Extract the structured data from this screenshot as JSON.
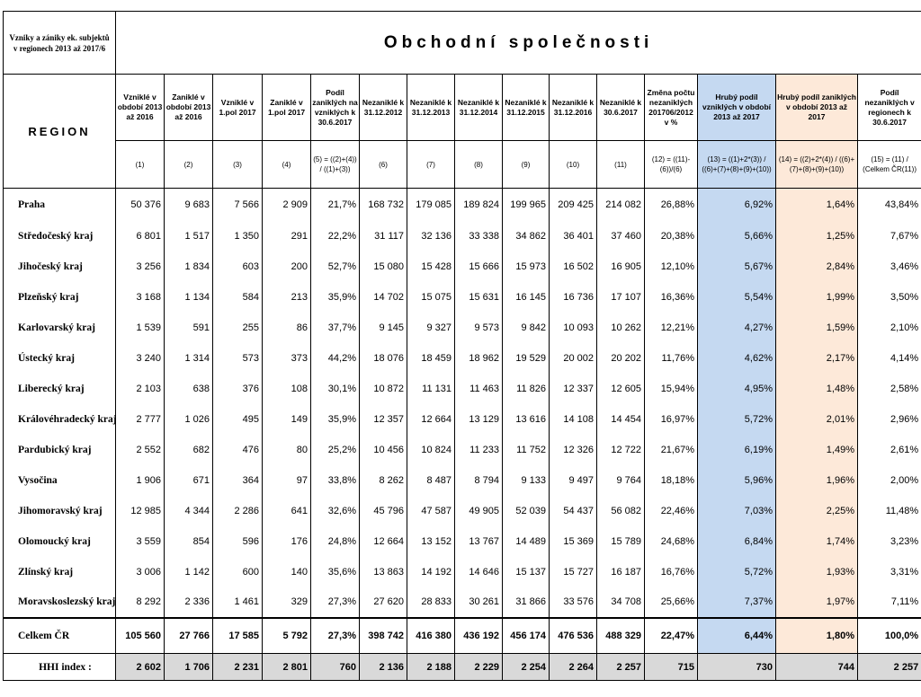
{
  "corner_label": "Vzniky a zániky ek. subjektů v regionech 2013 až 2017/6",
  "title": "Obchodní společnosti",
  "region_header": "REGION",
  "columns": [
    {
      "label": "Vzniklé v období 2013 až 2016",
      "formula": "(1)"
    },
    {
      "label": "Zaniklé v období 2013 až 2016",
      "formula": "(2)"
    },
    {
      "label": "Vzniklé v 1.pol 2017",
      "formula": "(3)"
    },
    {
      "label": "Zaniklé v 1.pol 2017",
      "formula": "(4)"
    },
    {
      "label": "Podíl zaniklých na vzniklých k 30.6.2017",
      "formula": "(5) = ((2)+(4)) / ((1)+(3))"
    },
    {
      "label": "Nezaniklé k 31.12.2012",
      "formula": "(6)"
    },
    {
      "label": "Nezaniklé k 31.12.2013",
      "formula": "(7)"
    },
    {
      "label": "Nezaniklé k 31.12.2014",
      "formula": "(8)"
    },
    {
      "label": "Nezaniklé k 31.12.2015",
      "formula": "(9)"
    },
    {
      "label": "Nezaniklé k 31.12.2016",
      "formula": "(10)"
    },
    {
      "label": "Nezaniklé k 30.6.2017",
      "formula": "(11)"
    },
    {
      "label": "Změna počtu nezaniklých 201706/2012 v %",
      "formula": "(12) = ((11)-(6))/(6)"
    },
    {
      "label": "Hrubý podíl vzniklých v období 2013 až 2017",
      "formula": "(13) = ((1)+2*(3)) / ((6)+(7)+(8)+(9)+(10))"
    },
    {
      "label": "Hrubý podíl zaniklých v období 2013 až 2017",
      "formula": "(14) = ((2)+2*(4)) / ((6)+(7)+(8)+(9)+(10))"
    },
    {
      "label": "Podíl nezaniklých v regionech k 30.6.2017",
      "formula": "(15) = (11) / (Celkem ČR(11))"
    }
  ],
  "rows": [
    {
      "name": "Praha",
      "values": [
        "50 376",
        "9 683",
        "7 566",
        "2 909",
        "21,7%",
        "168 732",
        "179 085",
        "189 824",
        "199 965",
        "209 425",
        "214 082",
        "26,88%",
        "6,92%",
        "1,64%",
        "43,84%"
      ]
    },
    {
      "name": "Středočeský kraj",
      "values": [
        "6 801",
        "1 517",
        "1 350",
        "291",
        "22,2%",
        "31 117",
        "32 136",
        "33 338",
        "34 862",
        "36 401",
        "37 460",
        "20,38%",
        "5,66%",
        "1,25%",
        "7,67%"
      ]
    },
    {
      "name": "Jihočeský kraj",
      "values": [
        "3 256",
        "1 834",
        "603",
        "200",
        "52,7%",
        "15 080",
        "15 428",
        "15 666",
        "15 973",
        "16 502",
        "16 905",
        "12,10%",
        "5,67%",
        "2,84%",
        "3,46%"
      ]
    },
    {
      "name": "Plzeňský kraj",
      "values": [
        "3 168",
        "1 134",
        "584",
        "213",
        "35,9%",
        "14 702",
        "15 075",
        "15 631",
        "16 145",
        "16 736",
        "17 107",
        "16,36%",
        "5,54%",
        "1,99%",
        "3,50%"
      ]
    },
    {
      "name": "Karlovarský kraj",
      "values": [
        "1 539",
        "591",
        "255",
        "86",
        "37,7%",
        "9 145",
        "9 327",
        "9 573",
        "9 842",
        "10 093",
        "10 262",
        "12,21%",
        "4,27%",
        "1,59%",
        "2,10%"
      ]
    },
    {
      "name": "Ústecký kraj",
      "values": [
        "3 240",
        "1 314",
        "573",
        "373",
        "44,2%",
        "18 076",
        "18 459",
        "18 962",
        "19 529",
        "20 002",
        "20 202",
        "11,76%",
        "4,62%",
        "2,17%",
        "4,14%"
      ]
    },
    {
      "name": "Liberecký kraj",
      "values": [
        "2 103",
        "638",
        "376",
        "108",
        "30,1%",
        "10 872",
        "11 131",
        "11 463",
        "11 826",
        "12 337",
        "12 605",
        "15,94%",
        "4,95%",
        "1,48%",
        "2,58%"
      ]
    },
    {
      "name": "Královéhradecký kraj",
      "values": [
        "2 777",
        "1 026",
        "495",
        "149",
        "35,9%",
        "12 357",
        "12 664",
        "13 129",
        "13 616",
        "14 108",
        "14 454",
        "16,97%",
        "5,72%",
        "2,01%",
        "2,96%"
      ]
    },
    {
      "name": "Pardubický kraj",
      "values": [
        "2 552",
        "682",
        "476",
        "80",
        "25,2%",
        "10 456",
        "10 824",
        "11 233",
        "11 752",
        "12 326",
        "12 722",
        "21,67%",
        "6,19%",
        "1,49%",
        "2,61%"
      ]
    },
    {
      "name": "Vysočina",
      "values": [
        "1 906",
        "671",
        "364",
        "97",
        "33,8%",
        "8 262",
        "8 487",
        "8 794",
        "9 133",
        "9 497",
        "9 764",
        "18,18%",
        "5,96%",
        "1,96%",
        "2,00%"
      ]
    },
    {
      "name": "Jihomoravský kraj",
      "values": [
        "12 985",
        "4 344",
        "2 286",
        "641",
        "32,6%",
        "45 796",
        "47 587",
        "49 905",
        "52 039",
        "54 437",
        "56 082",
        "22,46%",
        "7,03%",
        "2,25%",
        "11,48%"
      ]
    },
    {
      "name": "Olomoucký kraj",
      "values": [
        "3 559",
        "854",
        "596",
        "176",
        "24,8%",
        "12 664",
        "13 152",
        "13 767",
        "14 489",
        "15 369",
        "15 789",
        "24,68%",
        "6,84%",
        "1,74%",
        "3,23%"
      ]
    },
    {
      "name": "Zlínský kraj",
      "values": [
        "3 006",
        "1 142",
        "600",
        "140",
        "35,6%",
        "13 863",
        "14 192",
        "14 646",
        "15 137",
        "15 727",
        "16 187",
        "16,76%",
        "5,72%",
        "1,93%",
        "3,31%"
      ]
    },
    {
      "name": "Moravskoslezský kraj",
      "values": [
        "8 292",
        "2 336",
        "1 461",
        "329",
        "27,3%",
        "27 620",
        "28 833",
        "30 261",
        "31 866",
        "33 576",
        "34 708",
        "25,66%",
        "7,37%",
        "1,97%",
        "7,11%"
      ]
    }
  ],
  "total": {
    "name": "Celkem ČR",
    "values": [
      "105 560",
      "27 766",
      "17 585",
      "5 792",
      "27,3%",
      "398 742",
      "416 380",
      "436 192",
      "456 174",
      "476 536",
      "488 329",
      "22,47%",
      "6,44%",
      "1,80%",
      "100,0%"
    ]
  },
  "hhi": {
    "name": "HHI index :",
    "values": [
      "2 602",
      "1 706",
      "2 231",
      "2 801",
      "760",
      "2 136",
      "2 188",
      "2 229",
      "2 254",
      "2 264",
      "2 257",
      "715",
      "730",
      "744",
      "2 257"
    ]
  },
  "colors": {
    "blue_column": "#c5d9f1",
    "orange_column": "#fde9d9",
    "hhi_row": "#d9d9d9"
  }
}
